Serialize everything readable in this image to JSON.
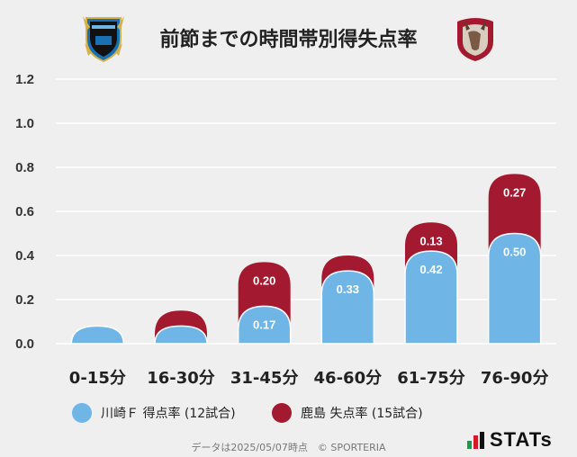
{
  "header": {
    "title": "前節までの時間帯別得失点率"
  },
  "legend": {
    "items": [
      {
        "label": "川崎Ｆ 得点率 (12試合)",
        "color": "#6fb6e7"
      },
      {
        "label": "鹿島 失点率 (15試合)",
        "color": "#a3192f"
      }
    ]
  },
  "footer": {
    "text": "データは2025/05/07時点　© SPORTERIA"
  },
  "brand": {
    "text": "STATs"
  },
  "chart_data": {
    "type": "bar",
    "stacked": true,
    "categories": [
      "0-15分",
      "16-30分",
      "31-45分",
      "46-60分",
      "61-75分",
      "76-90分"
    ],
    "series": [
      {
        "name": "川崎Ｆ 得点率 (12試合)",
        "color": "#6fb6e7",
        "values": [
          0.08,
          0.08,
          0.17,
          0.33,
          0.42,
          0.5
        ],
        "labels": [
          "",
          "",
          "0.17",
          "0.33",
          "0.42",
          "0.50"
        ]
      },
      {
        "name": "鹿島 失点率 (15試合)",
        "color": "#a3192f",
        "values": [
          0.0,
          0.07,
          0.2,
          0.07,
          0.13,
          0.27
        ],
        "labels": [
          "",
          "",
          "0.20",
          "",
          "0.13",
          "0.27"
        ]
      }
    ],
    "ylim": [
      0,
      1.2
    ],
    "yticks": [
      "0.0",
      "0.2",
      "0.4",
      "0.6",
      "0.8",
      "1.0",
      "1.2"
    ],
    "grid": true,
    "legend_position": "bottom"
  }
}
